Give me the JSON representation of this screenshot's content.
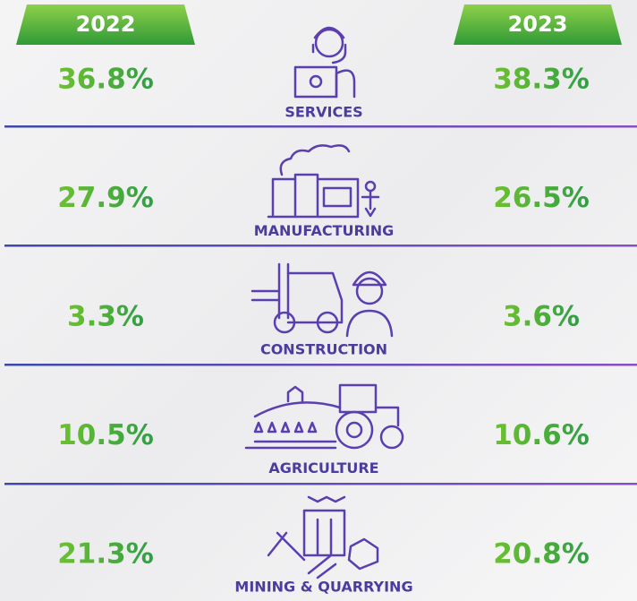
{
  "header": {
    "left_year": "2022",
    "right_year": "2023"
  },
  "rows": [
    {
      "sector": "SERVICES",
      "left": "36.8%",
      "right": "38.3%"
    },
    {
      "sector": "MANUFACTURING",
      "left": "27.9%",
      "right": "26.5%"
    },
    {
      "sector": "CONSTRUCTION",
      "left": "3.3%",
      "right": "3.6%"
    },
    {
      "sector": "AGRICULTURE",
      "left": "10.5%",
      "right": "10.6%"
    },
    {
      "sector": "MINING & QUARRYING",
      "left": "21.3%",
      "right": "20.8%"
    }
  ]
}
